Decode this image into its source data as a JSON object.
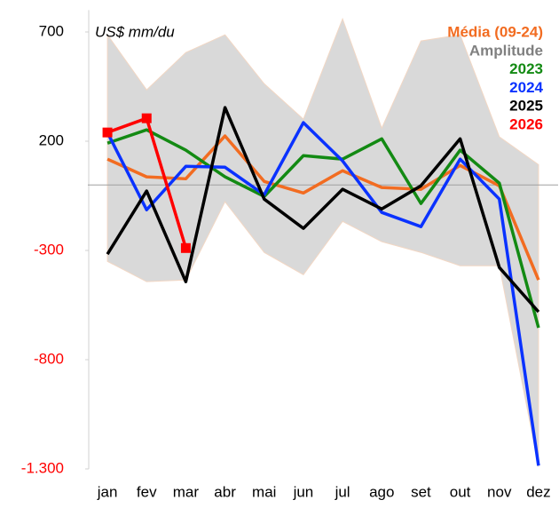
{
  "chart_data": {
    "type": "line",
    "annotation": "US$ mm/du",
    "categories": [
      "jan",
      "fev",
      "mar",
      "abr",
      "mai",
      "jun",
      "jul",
      "ago",
      "set",
      "out",
      "nov",
      "dez"
    ],
    "ylim": [
      -1300,
      800
    ],
    "yticks": [
      700,
      200,
      -300,
      -800,
      {
        "value": -1300,
        "label": "-1.300"
      }
    ],
    "negative_tick_color": "#ff0000",
    "zero_line": true,
    "legend": "top-right",
    "series": [
      {
        "name": "Média (09-24)",
        "color": "#f26c21",
        "values": [
          118,
          37,
          28,
          224,
          16,
          -37,
          65,
          -12,
          -20,
          89,
          -4,
          -435
        ]
      },
      {
        "name": "Amplitude",
        "color": "#808080",
        "fill": "#d9d9d9",
        "high": [
          687,
          435,
          606,
          687,
          463,
          301,
          760,
          260,
          659,
          687,
          220,
          93
        ],
        "low": [
          -350,
          -443,
          -435,
          -77,
          -309,
          -411,
          -167,
          -260,
          -309,
          -370,
          -370,
          -1290
        ]
      },
      {
        "name": "2023",
        "color": "#138a13",
        "values": [
          191,
          252,
          159,
          37,
          -53,
          134,
          118,
          211,
          -85,
          159,
          8,
          -654
        ]
      },
      {
        "name": "2024",
        "color": "#0a32ff",
        "values": [
          240,
          -114,
          85,
          81,
          -45,
          285,
          110,
          -126,
          -191,
          118,
          -65,
          -1285
        ]
      },
      {
        "name": "2025",
        "color": "#000000",
        "values": [
          -317,
          -28,
          -443,
          354,
          -65,
          -199,
          -20,
          -110,
          -4,
          211,
          -378,
          -581
        ]
      },
      {
        "name": "2026",
        "color": "#ff0000",
        "marker": "square",
        "values": [
          240,
          305,
          -289,
          null,
          null,
          null,
          null,
          null,
          null,
          null,
          null,
          null
        ]
      }
    ]
  }
}
